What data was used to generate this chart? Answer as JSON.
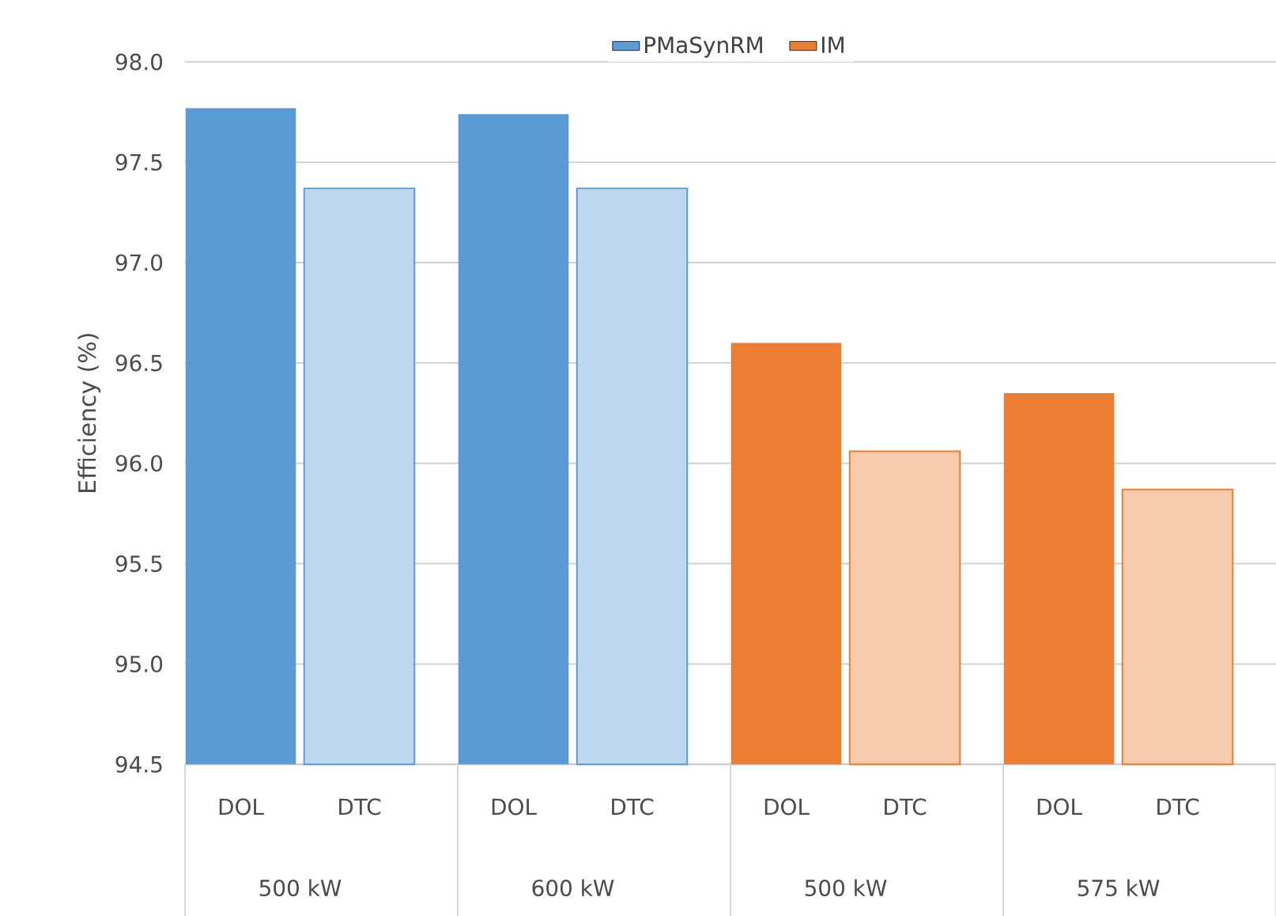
{
  "chart_data": {
    "type": "bar",
    "ylabel": "Efficiency (%)",
    "categories": [
      "DOL",
      "DTC",
      "DOL",
      "DTC",
      "DOL",
      "DTC",
      "DOL",
      "DTC"
    ],
    "series": [
      {
        "name": "PMaSynRM",
        "color": "#5b9bd5",
        "values": [
          97.77,
          97.37,
          97.74,
          97.37,
          null,
          null,
          null,
          null
        ]
      },
      {
        "name": "IM",
        "color": "#ed7d31",
        "values": [
          null,
          null,
          null,
          null,
          96.6,
          96.06,
          96.35,
          95.87
        ]
      }
    ],
    "ylim": [
      94.5,
      98.0
    ],
    "yticks": [
      {
        "value": 94.5,
        "label": "94.5"
      },
      {
        "value": 95,
        "label": "95.0"
      },
      {
        "value": 95.5,
        "label": "95.5"
      },
      {
        "value": 96,
        "label": "96.0"
      },
      {
        "value": 96.5,
        "label": "96.5"
      },
      {
        "value": 97,
        "label": "97.0"
      },
      {
        "value": 97.5,
        "label": "97.5"
      },
      {
        "value": 98,
        "label": "98.0"
      }
    ],
    "grid": "y",
    "legend": "top",
    "annotations": [
      "500 kW",
      "600 kW",
      "500 kW",
      "575 kW"
    ]
  }
}
